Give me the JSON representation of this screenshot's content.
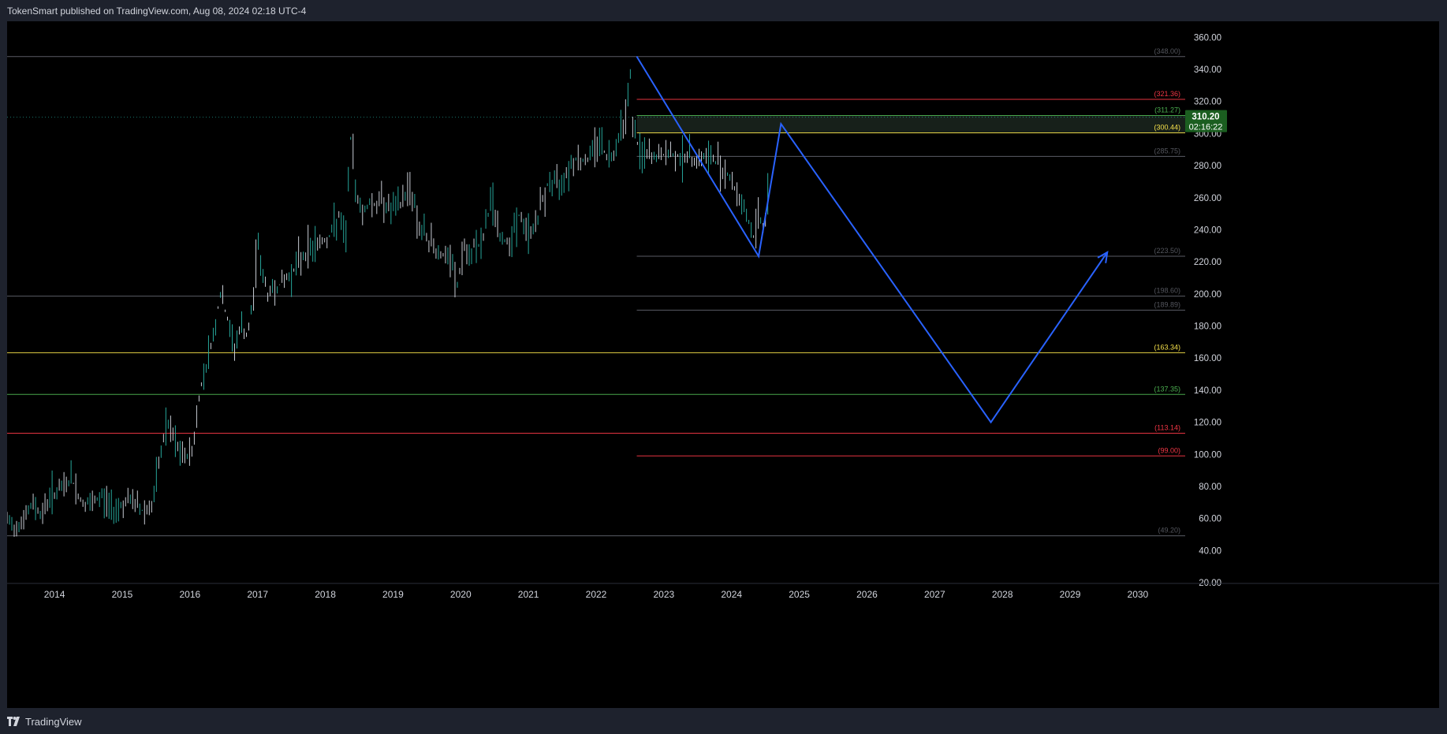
{
  "header": {
    "published_text": "TokenSmart published on TradingView.com, Aug 08, 2024 02:18 UTC-4"
  },
  "footer": {
    "brand_label": "TradingView"
  },
  "colors": {
    "background": "#000000",
    "frame": "#1e222d",
    "axis_text": "#d1d4dc",
    "projection": "#2962ff",
    "candle_up": "#26a69a",
    "candle_down": "#c8ccd4",
    "level_gray": "#787b86",
    "level_red": "#f23645",
    "level_green": "#4caf50",
    "level_yellow": "#f5e04a",
    "last_price_bg": "#1b5e20"
  },
  "chart_data": {
    "type": "line",
    "ylim": [
      20,
      370
    ],
    "xlim": [
      2013.35,
      2030.75
    ],
    "y_ticks": [
      "20.00",
      "40.00",
      "60.00",
      "80.00",
      "100.00",
      "120.00",
      "140.00",
      "160.00",
      "180.00",
      "200.00",
      "220.00",
      "240.00",
      "260.00",
      "280.00",
      "300.00",
      "320.00",
      "340.00",
      "360.00"
    ],
    "x_ticks": [
      "2014",
      "2015",
      "2016",
      "2017",
      "2018",
      "2019",
      "2020",
      "2021",
      "2022",
      "2023",
      "2024",
      "2025",
      "2026",
      "2027",
      "2028",
      "2029",
      "2030"
    ],
    "last_price": {
      "value": "310.20",
      "countdown": "02:16:22"
    },
    "price_series": {
      "x": [
        2013.35,
        2013.45,
        2013.6,
        2013.75,
        2013.85,
        2014.0,
        2014.15,
        2014.3,
        2014.45,
        2014.6,
        2014.75,
        2014.9,
        2015.05,
        2015.2,
        2015.35,
        2015.5,
        2015.6,
        2015.7,
        2015.8,
        2015.9,
        2016.0,
        2016.1,
        2016.2,
        2016.3,
        2016.4,
        2016.5,
        2016.6,
        2016.7,
        2016.8,
        2016.9,
        2017.0,
        2017.05,
        2017.1,
        2017.2,
        2017.35,
        2017.5,
        2017.65,
        2017.8,
        2017.95,
        2018.1,
        2018.25,
        2018.35,
        2018.42,
        2018.5,
        2018.6,
        2018.7,
        2018.8,
        2018.9,
        2019.0,
        2019.15,
        2019.3,
        2019.45,
        2019.6,
        2019.75,
        2019.9,
        2020.0,
        2020.1,
        2020.2,
        2020.25,
        2020.35,
        2020.5,
        2020.65,
        2020.8,
        2020.9,
        2021.0,
        2021.1,
        2021.2,
        2021.35,
        2021.5,
        2021.65,
        2021.75,
        2021.9,
        2022.0,
        2022.1,
        2022.2,
        2022.3,
        2022.4,
        2022.5,
        2022.55,
        2022.6,
        2022.65,
        2022.7,
        2022.8,
        2022.9,
        2023.1,
        2023.3,
        2023.5,
        2023.7,
        2023.85,
        2024.0,
        2024.1,
        2024.2,
        2024.3,
        2024.38,
        2024.45,
        2024.52,
        2024.58,
        2024.62
      ],
      "y": [
        58,
        55,
        60,
        70,
        62,
        75,
        78,
        85,
        70,
        68,
        74,
        66,
        69,
        71,
        65,
        68,
        95,
        120,
        110,
        100,
        98,
        105,
        140,
        158,
        175,
        200,
        185,
        165,
        180,
        172,
        200,
        240,
        215,
        200,
        205,
        210,
        220,
        228,
        232,
        235,
        248,
        232,
        300,
        265,
        250,
        258,
        255,
        260,
        252,
        255,
        268,
        240,
        232,
        225,
        220,
        205,
        230,
        215,
        235,
        228,
        260,
        232,
        235,
        250,
        240,
        238,
        250,
        270,
        268,
        280,
        285,
        282,
        290,
        298,
        285,
        288,
        302,
        315,
        340,
        300,
        295,
        288,
        286,
        285,
        287,
        286,
        284,
        285,
        282,
        275,
        265,
        258,
        245,
        235,
        250,
        242,
        252,
        305
      ]
    },
    "series": [
      {
        "type": "projection",
        "points": [
          [
            2022.65,
            348
          ],
          [
            2024.45,
            223.5
          ],
          [
            2024.78,
            306
          ],
          [
            2027.88,
            120
          ],
          [
            2029.6,
            226
          ]
        ]
      }
    ],
    "levels": [
      {
        "value": 348.0,
        "label": "(348.00)",
        "color": "gray",
        "x_start": 2013.35
      },
      {
        "value": 321.36,
        "label": "(321.36)",
        "color": "red",
        "x_start": 2022.65
      },
      {
        "value": 311.27,
        "label": "(311.27)",
        "color": "green",
        "x_start": 2022.65
      },
      {
        "value": 300.44,
        "label": "(300.44)",
        "color": "yellow",
        "x_start": 2022.65
      },
      {
        "value": 285.75,
        "label": "(285.75)",
        "color": "gray",
        "x_start": 2022.65
      },
      {
        "value": 223.5,
        "label": "(223.50)",
        "color": "gray",
        "x_start": 2022.65
      },
      {
        "value": 198.6,
        "label": "(198.60)",
        "color": "gray",
        "x_start": 2013.35
      },
      {
        "value": 189.89,
        "label": "(189.89)",
        "color": "gray",
        "x_start": 2022.65
      },
      {
        "value": 163.34,
        "label": "(163.34)",
        "color": "yellow",
        "x_start": 2013.35
      },
      {
        "value": 137.35,
        "label": "(137.35)",
        "color": "green",
        "x_start": 2013.35
      },
      {
        "value": 113.14,
        "label": "(113.14)",
        "color": "red",
        "x_start": 2013.35
      },
      {
        "value": 99.0,
        "label": "(99.00)",
        "color": "red",
        "x_start": 2022.65
      },
      {
        "value": 49.2,
        "label": "(49.20)",
        "color": "gray",
        "x_start": 2013.35
      }
    ],
    "zone": {
      "from": 300.44,
      "to": 311.27,
      "x_start": 2022.65
    }
  }
}
